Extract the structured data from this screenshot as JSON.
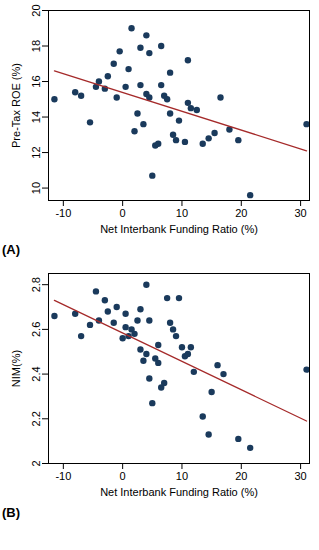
{
  "chart_data": [
    {
      "type": "scatter",
      "title": "(A)",
      "x_label": "Net Interbank Funding Ratio (%)",
      "y_label": "Pre-Tax ROE (%)",
      "xlim": [
        -12.5,
        31.5
      ],
      "xticks": [
        -10,
        0,
        10,
        20,
        30
      ],
      "ylim": [
        9.3,
        20
      ],
      "yticks": [
        10,
        12,
        14,
        16,
        18,
        20
      ],
      "grid": false,
      "series": [
        {
          "type": "scatter",
          "marker": "circle",
          "color": "#1a3a5c",
          "x": [
            -11.5,
            -8,
            -7,
            -5.5,
            -4.5,
            -4,
            -3,
            -2.5,
            -1.5,
            -1,
            -0.5,
            0.5,
            1,
            1.5,
            2,
            2.5,
            3,
            3,
            3.5,
            4,
            4,
            4.5,
            4.5,
            5,
            5.5,
            6,
            6.5,
            6.5,
            7,
            7.5,
            8,
            8,
            8.5,
            9,
            9.5,
            10.5,
            11,
            11,
            11.5,
            12.5,
            13.5,
            14.5,
            15.5,
            16.5,
            18,
            19.5,
            21.5,
            31
          ],
          "values": [
            15.0,
            15.4,
            15.2,
            13.7,
            15.7,
            16.0,
            15.6,
            16.3,
            17.0,
            15.1,
            17.7,
            15.7,
            16.7,
            19.0,
            13.2,
            14.2,
            15.8,
            17.9,
            13.6,
            18.6,
            15.3,
            17.6,
            15.1,
            10.7,
            12.4,
            12.5,
            15.8,
            18.0,
            15.2,
            15.0,
            14.2,
            16.5,
            13.0,
            12.7,
            13.8,
            12.6,
            17.2,
            14.8,
            14.5,
            14.4,
            12.5,
            12.8,
            13.1,
            15.1,
            13.3,
            12.7,
            9.6,
            13.6
          ]
        },
        {
          "type": "line",
          "line_style": "solid",
          "color": "#a52a2a",
          "x": [
            -11.5,
            31
          ],
          "values": [
            16.6,
            12.1
          ]
        }
      ]
    },
    {
      "type": "scatter",
      "title": "(B)",
      "x_label": "Net Interbank Funding Ratio (%)",
      "y_label": "NIM(%)",
      "xlim": [
        -12.5,
        31.5
      ],
      "xticks": [
        -10,
        0,
        10,
        20,
        30
      ],
      "ylim": [
        2.0,
        2.85
      ],
      "yticks": [
        2,
        2.2,
        2.4,
        2.6,
        2.8
      ],
      "grid": false,
      "series": [
        {
          "type": "scatter",
          "marker": "circle",
          "color": "#1a3a5c",
          "x": [
            -11.5,
            -8,
            -7,
            -5.5,
            -4.5,
            -4,
            -3,
            -2.5,
            -1.5,
            -1,
            0,
            0.5,
            0.5,
            1,
            1.5,
            2,
            2.5,
            3,
            3,
            3.5,
            4,
            4,
            4.5,
            4.5,
            5,
            5.5,
            6,
            6,
            6.5,
            7,
            7.5,
            8,
            8.5,
            9,
            9.5,
            10,
            10.5,
            11,
            11.5,
            12,
            13.5,
            14.5,
            15,
            16,
            17,
            19.5,
            21.5,
            31
          ],
          "values": [
            2.66,
            2.67,
            2.57,
            2.62,
            2.77,
            2.64,
            2.73,
            2.68,
            2.63,
            2.7,
            2.56,
            2.67,
            2.61,
            2.57,
            2.6,
            2.58,
            2.64,
            2.51,
            2.69,
            2.46,
            2.8,
            2.49,
            2.38,
            2.64,
            2.27,
            2.47,
            2.53,
            2.45,
            2.34,
            2.36,
            2.74,
            2.63,
            2.6,
            2.57,
            2.74,
            2.52,
            2.48,
            2.49,
            2.52,
            2.41,
            2.21,
            2.13,
            2.32,
            2.44,
            2.4,
            2.11,
            2.07,
            2.42
          ]
        },
        {
          "type": "line",
          "line_style": "solid",
          "color": "#a52a2a",
          "x": [
            -11.5,
            31
          ],
          "values": [
            2.73,
            2.19
          ]
        }
      ]
    }
  ]
}
